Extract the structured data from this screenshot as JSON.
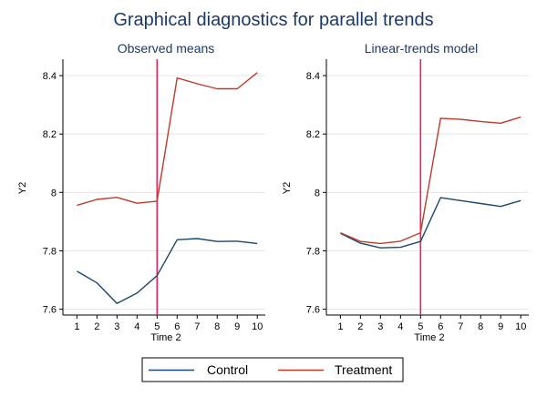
{
  "figure": {
    "title": "Graphical diagnostics for parallel trends"
  },
  "legend": {
    "placement": "bottom-center",
    "items": [
      {
        "label": "Control",
        "color": "#1a476f"
      },
      {
        "label": "Treatment",
        "color": "#c0392b"
      }
    ]
  },
  "colors": {
    "title": "#1a3a6b",
    "control": "#1a476f",
    "treatment": "#c0392b",
    "treatment_line": "#e8245a",
    "grid": "#e4e4e4",
    "axis": "#000000"
  },
  "chart_data": [
    {
      "type": "line",
      "title": "Observed means",
      "xlabel": "Time 2",
      "ylabel": "Y2",
      "x": [
        1,
        2,
        3,
        4,
        5,
        6,
        7,
        8,
        9,
        10
      ],
      "xticks": [
        "1",
        "2",
        "3",
        "4",
        "5",
        "6",
        "7",
        "8",
        "9",
        "10"
      ],
      "ylim": [
        7.58,
        8.45
      ],
      "yticks": [
        7.6,
        7.8,
        8,
        8.2,
        8.4
      ],
      "yticklabels": [
        "7.6",
        "7.8",
        "8",
        "8.2",
        "8.4"
      ],
      "grid": true,
      "treatment_start": 5,
      "series": [
        {
          "name": "Control",
          "values": [
            7.73,
            7.69,
            7.62,
            7.655,
            7.715,
            7.838,
            7.842,
            7.832,
            7.833,
            7.825
          ]
        },
        {
          "name": "Treatment",
          "values": [
            7.956,
            7.976,
            7.983,
            7.963,
            7.97,
            8.392,
            8.372,
            8.355,
            8.355,
            8.41
          ]
        }
      ]
    },
    {
      "type": "line",
      "title": "Linear-trends model",
      "xlabel": "Time 2",
      "ylabel": "Y2",
      "x": [
        1,
        2,
        3,
        4,
        5,
        6,
        7,
        8,
        9,
        10
      ],
      "xticks": [
        "1",
        "2",
        "3",
        "4",
        "5",
        "6",
        "7",
        "8",
        "9",
        "10"
      ],
      "ylim": [
        7.58,
        8.45
      ],
      "yticks": [
        7.6,
        7.8,
        8,
        8.2,
        8.4
      ],
      "yticklabels": [
        "7.6",
        "7.8",
        "8",
        "8.2",
        "8.4"
      ],
      "grid": true,
      "treatment_start": 5,
      "series": [
        {
          "name": "Control",
          "values": [
            7.86,
            7.826,
            7.81,
            7.812,
            7.832,
            7.982,
            7.972,
            7.962,
            7.952,
            7.972
          ]
        },
        {
          "name": "Treatment",
          "values": [
            7.862,
            7.832,
            7.825,
            7.833,
            7.862,
            8.254,
            8.25,
            8.243,
            8.237,
            8.258
          ]
        }
      ]
    }
  ]
}
